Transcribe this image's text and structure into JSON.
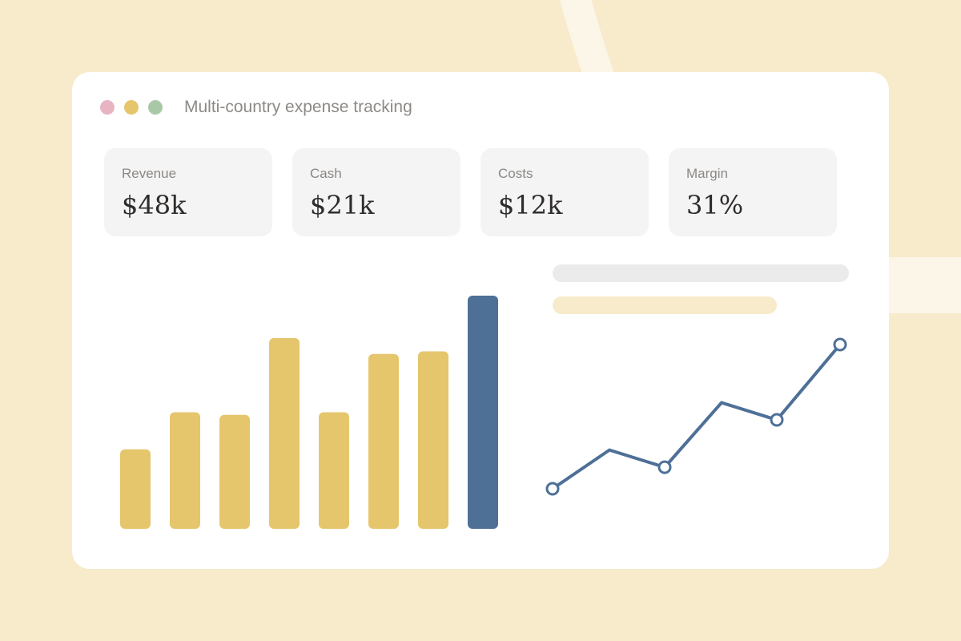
{
  "window": {
    "title": "Multi-country expense tracking",
    "controls": [
      {
        "name": "close",
        "color": "#e7b4c2"
      },
      {
        "name": "minimize",
        "color": "#e6c66d"
      },
      {
        "name": "zoom",
        "color": "#a9c9a6"
      }
    ]
  },
  "kpis": [
    {
      "label": "Revenue",
      "value": "$48k"
    },
    {
      "label": "Cash",
      "value": "$21k"
    },
    {
      "label": "Costs",
      "value": "$12k"
    },
    {
      "label": "Margin",
      "value": "31%"
    }
  ],
  "colors": {
    "background": "#f7ebcc",
    "arc": "#fcf6e8",
    "bar": "#e6c66d",
    "bar_highlight": "#4e7097",
    "line": "#4e7097",
    "placeholder_gray": "#ecebeb",
    "placeholder_yellow": "#f7ebcc"
  },
  "chart_data": [
    {
      "type": "bar",
      "values": [
        3.0,
        4.4,
        4.3,
        7.2,
        4.4,
        6.6,
        6.7,
        8.8
      ],
      "highlight_index": 7,
      "ylim": [
        0,
        8.8
      ],
      "grid": false,
      "legend": "none"
    },
    {
      "type": "line",
      "x": [
        0,
        1,
        2,
        3,
        4,
        5
      ],
      "y": [
        0.0,
        1.8,
        1.0,
        4.0,
        3.2,
        6.7
      ],
      "markers": [
        0,
        2,
        4,
        5
      ],
      "ylim": [
        0,
        6.7
      ],
      "grid": false,
      "legend": "none"
    }
  ]
}
